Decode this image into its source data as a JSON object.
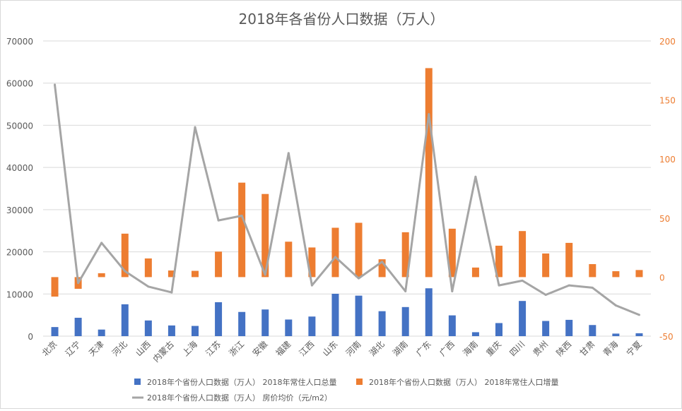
{
  "chart_data": {
    "type": "bar",
    "title": "2018年各省份人口数据（万人）",
    "categories": [
      "北京",
      "辽宁",
      "天津",
      "河北",
      "山西",
      "内蒙古",
      "上海",
      "江苏",
      "浙江",
      "安徽",
      "福建",
      "江西",
      "山东",
      "河南",
      "湖北",
      "湖南",
      "广东",
      "广西",
      "海南",
      "重庆",
      "四川",
      "贵州",
      "陕西",
      "甘肃",
      "青海",
      "宁夏"
    ],
    "series": [
      {
        "name": "2018年个省份人口数据（万人） 2018年常住人口总量",
        "type": "bar",
        "axis": "left",
        "color": "#4472C4",
        "values": [
          2154,
          4359,
          1560,
          7556,
          3718,
          2534,
          2424,
          8051,
          5737,
          6324,
          3941,
          4648,
          10047,
          9605,
          5917,
          6899,
          11346,
          4926,
          934,
          3102,
          8341,
          3600,
          3864,
          2637,
          603,
          688
        ]
      },
      {
        "name": "2018年个省份人口数据（万人） 2018年常住人口增量",
        "type": "bar",
        "axis": "right",
        "color": "#ED7D31",
        "values": [
          -16.5,
          -9.9,
          3.3,
          36.8,
          15.8,
          5.6,
          5.3,
          21.6,
          80.0,
          70.4,
          30.0,
          25.1,
          41.8,
          46.0,
          15.1,
          38.0,
          177.0,
          41.0,
          8.1,
          26.6,
          39.0,
          20.0,
          29.0,
          11.0,
          5.0,
          6.0
        ]
      },
      {
        "name": "2018年个省份人口数据（万人） 房价均价（元/m2）",
        "type": "line",
        "axis": "right",
        "color": "#A5A5A5",
        "values": [
          163,
          -5,
          29,
          5,
          -8,
          -13,
          127,
          48,
          52,
          2,
          105,
          -7,
          17,
          -1,
          13,
          -12,
          138,
          -12,
          85,
          -7,
          -3,
          -15,
          -7,
          -9,
          -24,
          -32
        ]
      }
    ],
    "left_axis": {
      "min": 0,
      "max": 70000,
      "ticks": [
        "0",
        "10000",
        "20000",
        "30000",
        "40000",
        "50000",
        "60000",
        "70000"
      ]
    },
    "right_axis": {
      "min": -50,
      "max": 200,
      "ticks": [
        "-50",
        "0",
        "50",
        "100",
        "150",
        "200"
      ]
    },
    "grid": true,
    "legend_position": "bottom"
  }
}
